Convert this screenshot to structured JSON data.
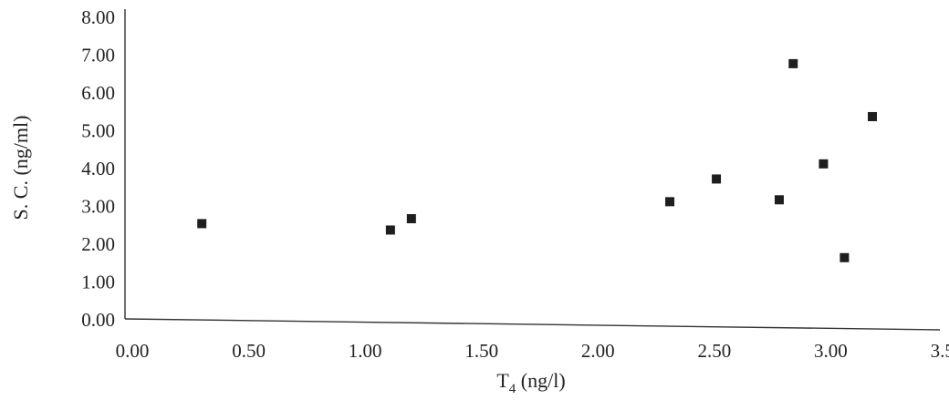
{
  "chart_data": {
    "type": "scatter",
    "title": "",
    "xlabel": {
      "main": "T",
      "sub": "4",
      "unit": " (ng/l)"
    },
    "ylabel": "S. C. (ng/ml)",
    "xlim": [
      0,
      3.5
    ],
    "ylim": [
      0,
      8
    ],
    "x_ticks": [
      "0.00",
      "0.50",
      "1.00",
      "1.50",
      "2.00",
      "2.50",
      "3.00",
      "3.50"
    ],
    "y_ticks": [
      "0.00",
      "1.00",
      "2.00",
      "3.00",
      "4.00",
      "5.00",
      "6.00",
      "7.00",
      "8.00"
    ],
    "grid": false,
    "legend": "none",
    "marker_color": "#1e1e1e",
    "points": [
      {
        "x": 0.33,
        "y": 2.52
      },
      {
        "x": 1.14,
        "y": 2.35
      },
      {
        "x": 1.23,
        "y": 2.65
      },
      {
        "x": 2.34,
        "y": 3.1
      },
      {
        "x": 2.54,
        "y": 3.7
      },
      {
        "x": 2.81,
        "y": 3.15
      },
      {
        "x": 2.87,
        "y": 6.75
      },
      {
        "x": 3.0,
        "y": 4.1
      },
      {
        "x": 3.09,
        "y": 1.62
      },
      {
        "x": 3.21,
        "y": 5.35
      }
    ]
  }
}
